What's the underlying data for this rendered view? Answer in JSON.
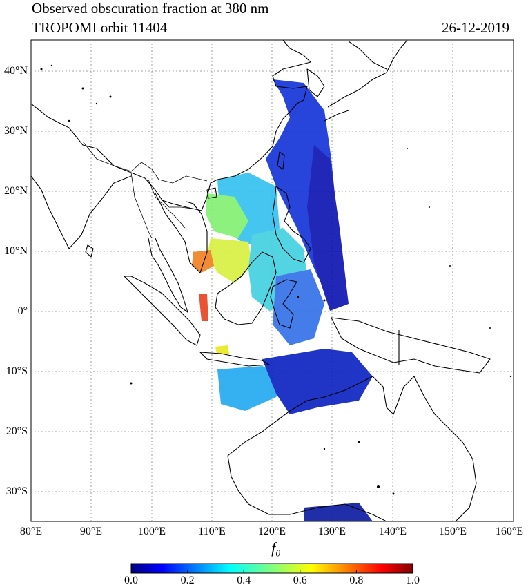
{
  "header": {
    "title_line1": "Observed obscuration fraction at 380 nm",
    "title_line2": "TROPOMI orbit 11404",
    "date": "26-12-2019"
  },
  "map": {
    "lon_range": [
      80,
      160
    ],
    "lat_range": [
      -35,
      45
    ],
    "grid": true,
    "lat_labels": [
      "40°N",
      "30°N",
      "20°N",
      "10°N",
      "0°",
      "10°S",
      "20°S",
      "30°S"
    ],
    "lon_labels": [
      "80°E",
      "90°E",
      "100°E",
      "110°E",
      "120°E",
      "130°E",
      "140°E",
      "150°E",
      "160°E"
    ]
  },
  "colorbar": {
    "label": "f₀",
    "min": 0.0,
    "max": 1.0,
    "tick_labels": [
      "0.0",
      "0.2",
      "0.4",
      "0.6",
      "0.8",
      "1.0"
    ],
    "colormap": "jet"
  }
}
